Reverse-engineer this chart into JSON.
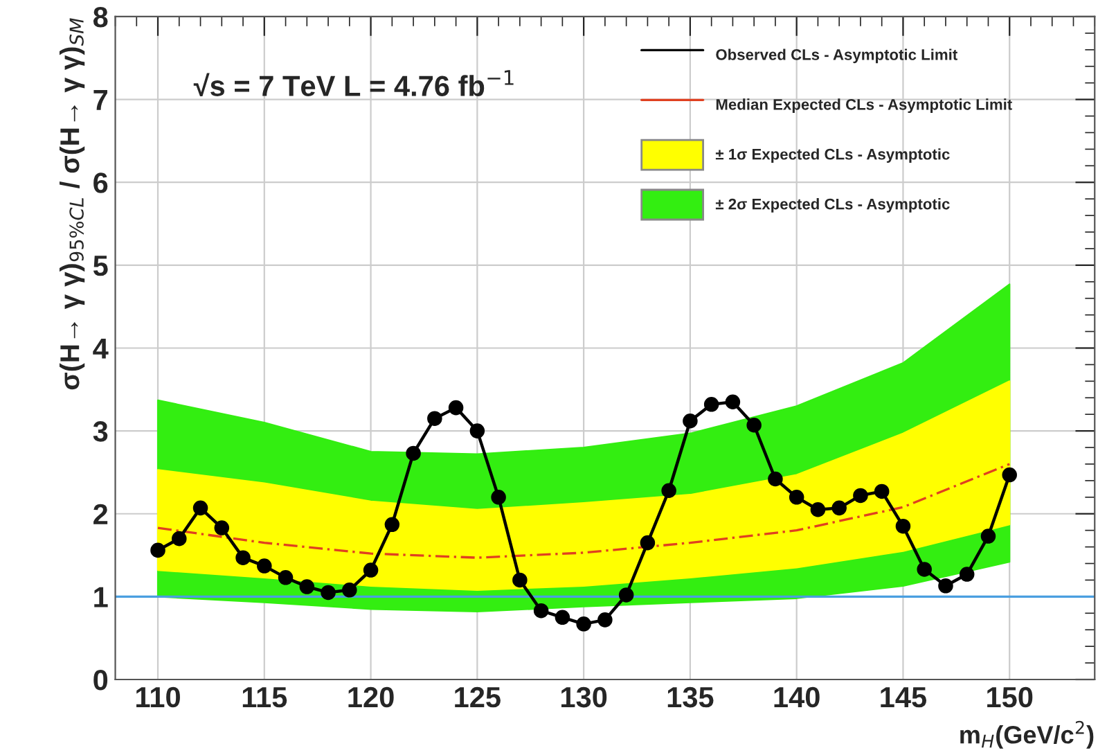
{
  "chart_data": {
    "type": "line",
    "xlabel": "m$_{H}$(GeV/c$^{2}$)",
    "ylabel": "σ(H→ γ γ)$_{95%CL}$ / σ(H→ γ γ)$_{SM}$",
    "annotations": [
      "√s = 7 TeV L = 4.76 fb$^{−1}$"
    ],
    "xlim": [
      108,
      154
    ],
    "xticks": [
      110,
      115,
      120,
      125,
      130,
      135,
      140,
      145,
      150
    ],
    "ylim": [
      0,
      8
    ],
    "yticks": [
      0,
      1,
      2,
      3,
      4,
      5,
      6,
      7,
      8
    ],
    "grid": true,
    "legend": "top right",
    "series": [
      {
        "type": "line",
        "name": "± 2σ Expected CLs - Asymptotic",
        "color": "#33ee11",
        "x": [
          110,
          115,
          120,
          125,
          130,
          135,
          140,
          145,
          150
        ],
        "values": [
          null,
          null,
          null,
          null,
          null,
          null,
          null,
          null,
          null
        ],
        "lower": [
          1.0,
          0.93,
          0.85,
          0.82,
          0.88,
          0.93,
          0.98,
          1.13,
          1.42
        ],
        "upper": [
          3.37,
          3.1,
          2.75,
          2.72,
          2.8,
          2.97,
          3.3,
          3.82,
          4.77
        ]
      },
      {
        "type": "line",
        "name": "± 1σ Expected CLs - Asymptotic",
        "color": "#ffff00",
        "x": [
          110,
          115,
          120,
          125,
          130,
          135,
          140,
          145,
          150
        ],
        "values": [
          null,
          null,
          null,
          null,
          null,
          null,
          null,
          null,
          null
        ],
        "lower": [
          1.32,
          1.23,
          1.13,
          1.08,
          1.13,
          1.23,
          1.35,
          1.55,
          1.87
        ],
        "upper": [
          2.53,
          2.37,
          2.15,
          2.05,
          2.13,
          2.23,
          2.47,
          2.97,
          3.6
        ]
      },
      {
        "type": "line",
        "name": "Median Expected CLs - Asymptotic Limit",
        "color": "#e04020",
        "line_style": "dashed",
        "marker": "none",
        "x": [
          110,
          115,
          120,
          125,
          130,
          135,
          140,
          145,
          150
        ],
        "values": [
          1.83,
          1.65,
          1.52,
          1.47,
          1.53,
          1.65,
          1.8,
          2.08,
          2.6
        ]
      },
      {
        "type": "line",
        "name": "Observed CLs - Asymptotic Limit",
        "color": "#000000",
        "line_style": "solid",
        "marker": "circle",
        "x": [
          110,
          111,
          112,
          113,
          114,
          115,
          116,
          117,
          118,
          119,
          120,
          121,
          122,
          123,
          124,
          125,
          126,
          127,
          128,
          129,
          130,
          131,
          132,
          133,
          134,
          135,
          136,
          137,
          138,
          139,
          140,
          141,
          142,
          143,
          144,
          145,
          146,
          147,
          148,
          149,
          150
        ],
        "values": [
          1.56,
          1.7,
          2.07,
          1.83,
          1.47,
          1.37,
          1.23,
          1.12,
          1.05,
          1.08,
          1.32,
          1.87,
          2.73,
          3.15,
          3.28,
          3.0,
          2.2,
          1.2,
          0.83,
          0.75,
          0.67,
          0.72,
          1.02,
          1.65,
          2.28,
          3.12,
          3.32,
          3.35,
          3.07,
          2.42,
          2.2,
          2.05,
          2.07,
          2.22,
          2.27,
          1.85,
          1.33,
          1.13,
          1.27,
          1.73,
          2.47
        ]
      }
    ],
    "ref_lines": [
      {
        "axis": "y",
        "value": 1,
        "color": "#4a9fe0"
      }
    ]
  }
}
